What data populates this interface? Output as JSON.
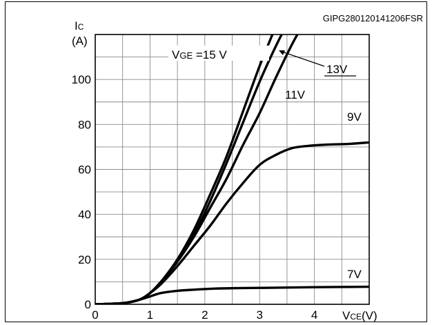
{
  "chart_data": {
    "type": "line",
    "figure_id": "GIPG280120141206FSR",
    "ylabel_symbol": "I",
    "ylabel_subscript": "C",
    "ylabel_unit": "(A)",
    "xlabel_symbol": "V",
    "xlabel_subscript": "CE",
    "xlabel_unit": "(V)",
    "xlim": [
      0,
      5
    ],
    "ylim": [
      0,
      120
    ],
    "x_ticks": [
      0,
      1,
      2,
      3,
      4
    ],
    "y_ticks": [
      0,
      20,
      40,
      60,
      80,
      100
    ],
    "x_tick_labels": [
      "0",
      "1",
      "2",
      "3",
      "4"
    ],
    "y_tick_labels": [
      "0",
      "20",
      "40",
      "60",
      "80",
      "100"
    ],
    "grid": true,
    "grid_x_step": 0.5,
    "grid_y_step": 10,
    "series": [
      {
        "name": "15 V",
        "x": [
          0,
          0.5,
          0.8,
          1.0,
          1.2,
          1.5,
          1.8,
          2.1,
          2.4,
          2.7,
          3.0,
          3.2,
          3.4
        ],
        "y": [
          0,
          0.5,
          2,
          5,
          10,
          20,
          33,
          49,
          66,
          86,
          106,
          118,
          130
        ]
      },
      {
        "name": "13V",
        "x": [
          0,
          0.5,
          0.8,
          1.0,
          1.2,
          1.5,
          1.8,
          2.1,
          2.4,
          2.7,
          3.0,
          3.3,
          3.55
        ],
        "y": [
          0,
          0.5,
          2,
          5,
          10,
          19,
          31,
          46,
          63,
          81,
          99,
          115,
          127
        ]
      },
      {
        "name": "11V",
        "x": [
          0,
          0.5,
          0.8,
          1.0,
          1.2,
          1.5,
          1.8,
          2.1,
          2.4,
          2.7,
          3.0,
          3.3,
          3.6,
          3.85
        ],
        "y": [
          0,
          0.5,
          2,
          5,
          10,
          19,
          30,
          43,
          56,
          71,
          85,
          101,
          116,
          127
        ]
      },
      {
        "name": "9V",
        "x": [
          0,
          0.5,
          0.8,
          1.0,
          1.2,
          1.5,
          1.8,
          2.1,
          2.4,
          2.7,
          3.0,
          3.3,
          3.6,
          3.9,
          4.2,
          4.6,
          5.0
        ],
        "y": [
          0,
          0.5,
          2,
          5,
          9,
          17,
          26,
          35,
          45,
          54,
          62,
          66.5,
          69.5,
          70.5,
          71,
          71.3,
          72
        ]
      },
      {
        "name": "7V",
        "x": [
          0,
          0.5,
          0.8,
          1.0,
          1.2,
          1.5,
          1.8,
          2.2,
          2.6,
          3.0,
          4.0,
          5.0
        ],
        "y": [
          0,
          0.5,
          2,
          3.5,
          5,
          6,
          6.5,
          7,
          7.2,
          7.3,
          7.6,
          7.8
        ]
      }
    ],
    "annotations": {
      "vge_label_prefix": "V",
      "vge_label_subscript": "GE",
      "vge_label_suffix": " =15 V",
      "label_13v": "13V",
      "label_11v": "11V",
      "label_9v": "9V",
      "label_7v": "7V"
    }
  }
}
